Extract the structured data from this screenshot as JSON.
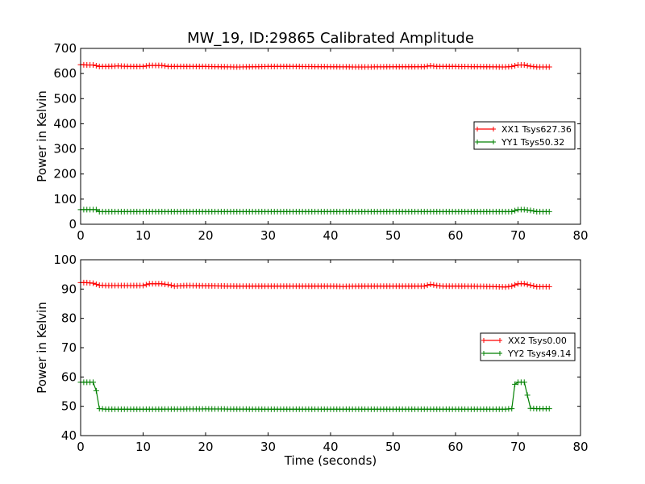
{
  "chart_data": [
    {
      "type": "line",
      "title": "MW_19, ID:29865 Calibrated Amplitude",
      "xlabel": "",
      "ylabel": "Power in Kelvin",
      "xlim": [
        0,
        80
      ],
      "ylim": [
        0,
        700
      ],
      "xticks": [
        "0",
        "10",
        "20",
        "30",
        "40",
        "50",
        "60",
        "70",
        "80"
      ],
      "yticks": [
        "0",
        "100",
        "200",
        "300",
        "400",
        "500",
        "600",
        "700"
      ],
      "grid": false,
      "legend_placement": "center-right",
      "series": [
        {
          "name": "XX1 Tsys627.36",
          "color": "#ff0000",
          "marker": "plus",
          "x": [
            0,
            1,
            2,
            3,
            4,
            5,
            6,
            8,
            10,
            11,
            12,
            13,
            14,
            15,
            17,
            20,
            25,
            30,
            35,
            40,
            45,
            50,
            55,
            56,
            57,
            58,
            60,
            65,
            68,
            69,
            70,
            71,
            72,
            73,
            75
          ],
          "y": [
            635,
            634,
            634,
            628,
            628,
            629,
            630,
            628,
            628,
            632,
            632,
            632,
            628,
            628,
            628,
            628,
            626,
            628,
            628,
            627,
            626,
            627,
            627,
            631,
            628,
            628,
            628,
            627,
            626,
            628,
            634,
            634,
            629,
            626,
            626
          ]
        },
        {
          "name": "YY1 Tsys50.32",
          "color": "#008000",
          "marker": "plus",
          "x": [
            0,
            1,
            2,
            2.5,
            3,
            4,
            10,
            20,
            30,
            40,
            50,
            60,
            68,
            69,
            70,
            71,
            72,
            73,
            75
          ],
          "y": [
            58,
            58,
            58,
            58,
            50,
            50,
            50,
            50,
            50,
            50,
            50,
            50,
            50,
            50,
            58,
            58,
            55,
            50,
            50
          ]
        }
      ]
    },
    {
      "type": "line",
      "title": "",
      "xlabel": "Time (seconds)",
      "ylabel": "Power in Kelvin",
      "xlim": [
        0,
        80
      ],
      "ylim": [
        40,
        100
      ],
      "xticks": [
        "0",
        "10",
        "20",
        "30",
        "40",
        "50",
        "60",
        "70",
        "80"
      ],
      "yticks": [
        "40",
        "50",
        "60",
        "70",
        "80",
        "90",
        "100"
      ],
      "grid": false,
      "legend_placement": "center-right",
      "series": [
        {
          "name": "XX2 Tsys0.00",
          "color": "#ff0000",
          "marker": "plus",
          "x": [
            0,
            1,
            2,
            3,
            4,
            5,
            8,
            10,
            11,
            12,
            13,
            14,
            15,
            17,
            20,
            25,
            30,
            35,
            40,
            42,
            45,
            50,
            55,
            56,
            57,
            58,
            60,
            65,
            68,
            69,
            70,
            71,
            72,
            73,
            75
          ],
          "y": [
            92.2,
            92.2,
            92.0,
            91.3,
            91.2,
            91.2,
            91.2,
            91.2,
            91.8,
            91.8,
            91.8,
            91.5,
            91.0,
            91.2,
            91.1,
            91.0,
            91.0,
            91.0,
            91.0,
            90.9,
            91.0,
            91.0,
            91.0,
            91.6,
            91.2,
            91.0,
            91.0,
            90.9,
            90.7,
            91.0,
            91.8,
            91.8,
            91.3,
            90.8,
            90.8
          ]
        },
        {
          "name": "YY2 Tsys49.14",
          "color": "#008000",
          "marker": "plus",
          "x": [
            0,
            1,
            2,
            2.5,
            3,
            4,
            10,
            20,
            30,
            40,
            50,
            60,
            68,
            69,
            69.5,
            70,
            71,
            71.5,
            72,
            73,
            75
          ],
          "y": [
            58.2,
            58.2,
            58.2,
            55.3,
            49.2,
            49.0,
            49.0,
            49.1,
            49.0,
            49.0,
            49.0,
            49.0,
            49.0,
            49.2,
            57.5,
            58.2,
            58.2,
            53.8,
            49.3,
            49.2,
            49.2
          ]
        }
      ]
    }
  ]
}
